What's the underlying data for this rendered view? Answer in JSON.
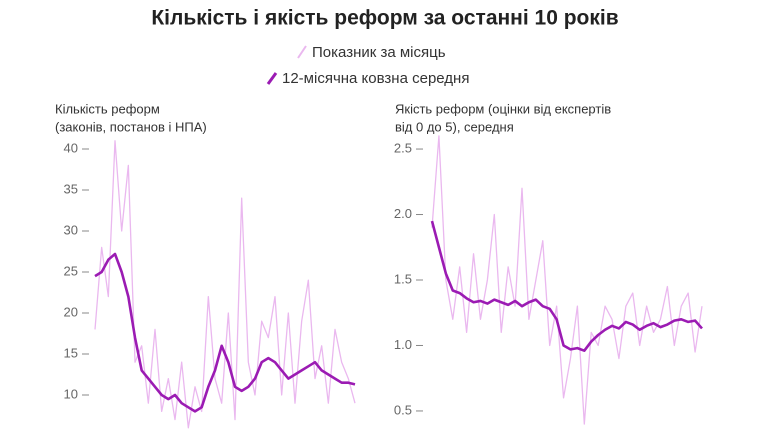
{
  "title": "Кількість і якість реформ за останні 10 років",
  "chart_data": [
    {
      "type": "line",
      "y_label": [
        "Кількість реформ",
        "(законів, постанов і НПА)"
      ],
      "ylim": [
        6,
        42
      ],
      "yticks": [
        10,
        15,
        20,
        25,
        30,
        35,
        40
      ],
      "series": [
        {
          "name": "Показник за місяць",
          "color": "#eab8ef",
          "width": 1.3,
          "values": [
            18,
            28,
            22,
            41,
            30,
            38,
            14,
            16,
            9,
            18,
            8,
            12,
            7,
            14,
            6,
            11,
            8,
            22,
            12,
            9,
            20,
            7,
            34,
            14,
            10,
            19,
            17,
            22,
            10,
            20,
            9,
            19,
            24,
            12,
            16,
            9,
            18,
            14,
            12,
            9
          ]
        },
        {
          "name": "12-місячна ковзна середня",
          "color": "#9b1bb3",
          "width": 2.6,
          "values": [
            24.5,
            25,
            26.5,
            27.2,
            25,
            22,
            17,
            13,
            12,
            11,
            10,
            9.5,
            10,
            9,
            8.5,
            8,
            8.5,
            11,
            13,
            16,
            14,
            11,
            10.5,
            11,
            12,
            14,
            14.5,
            14,
            13,
            12,
            12.5,
            13,
            13.5,
            14,
            13,
            12.5,
            12,
            11.5,
            11.5,
            11.3
          ]
        }
      ]
    },
    {
      "type": "line",
      "y_label": [
        "Якість реформ (оцінки від експертів",
        "від 0 до 5), середня"
      ],
      "ylim": [
        0.35,
        2.65
      ],
      "yticks": [
        0.5,
        {
          "value": 1,
          "label": "1.0"
        },
        1.5,
        {
          "value": 2,
          "label": "2.0"
        },
        2.5
      ],
      "series": [
        {
          "color": "#eab8ef",
          "width": 1.3,
          "values": [
            1.9,
            2.6,
            1.5,
            1.2,
            1.6,
            1.1,
            1.7,
            1.2,
            1.5,
            2.0,
            1.1,
            1.6,
            1.3,
            2.2,
            1.2,
            1.5,
            1.8,
            1.0,
            1.3,
            0.6,
            0.9,
            1.3,
            0.4,
            1.1,
            1.0,
            1.3,
            1.2,
            0.9,
            1.3,
            1.4,
            1.0,
            1.3,
            1.1,
            1.2,
            1.45,
            1.0,
            1.3,
            1.4,
            0.95,
            1.3
          ]
        },
        {
          "color": "#9b1bb3",
          "width": 2.6,
          "values": [
            1.95,
            1.75,
            1.55,
            1.42,
            1.4,
            1.36,
            1.33,
            1.34,
            1.32,
            1.35,
            1.33,
            1.31,
            1.34,
            1.3,
            1.33,
            1.35,
            1.3,
            1.28,
            1.2,
            1.0,
            0.97,
            0.98,
            0.96,
            1.03,
            1.08,
            1.12,
            1.15,
            1.13,
            1.18,
            1.16,
            1.12,
            1.15,
            1.17,
            1.14,
            1.16,
            1.19,
            1.2,
            1.18,
            1.19,
            1.13
          ]
        }
      ]
    }
  ]
}
